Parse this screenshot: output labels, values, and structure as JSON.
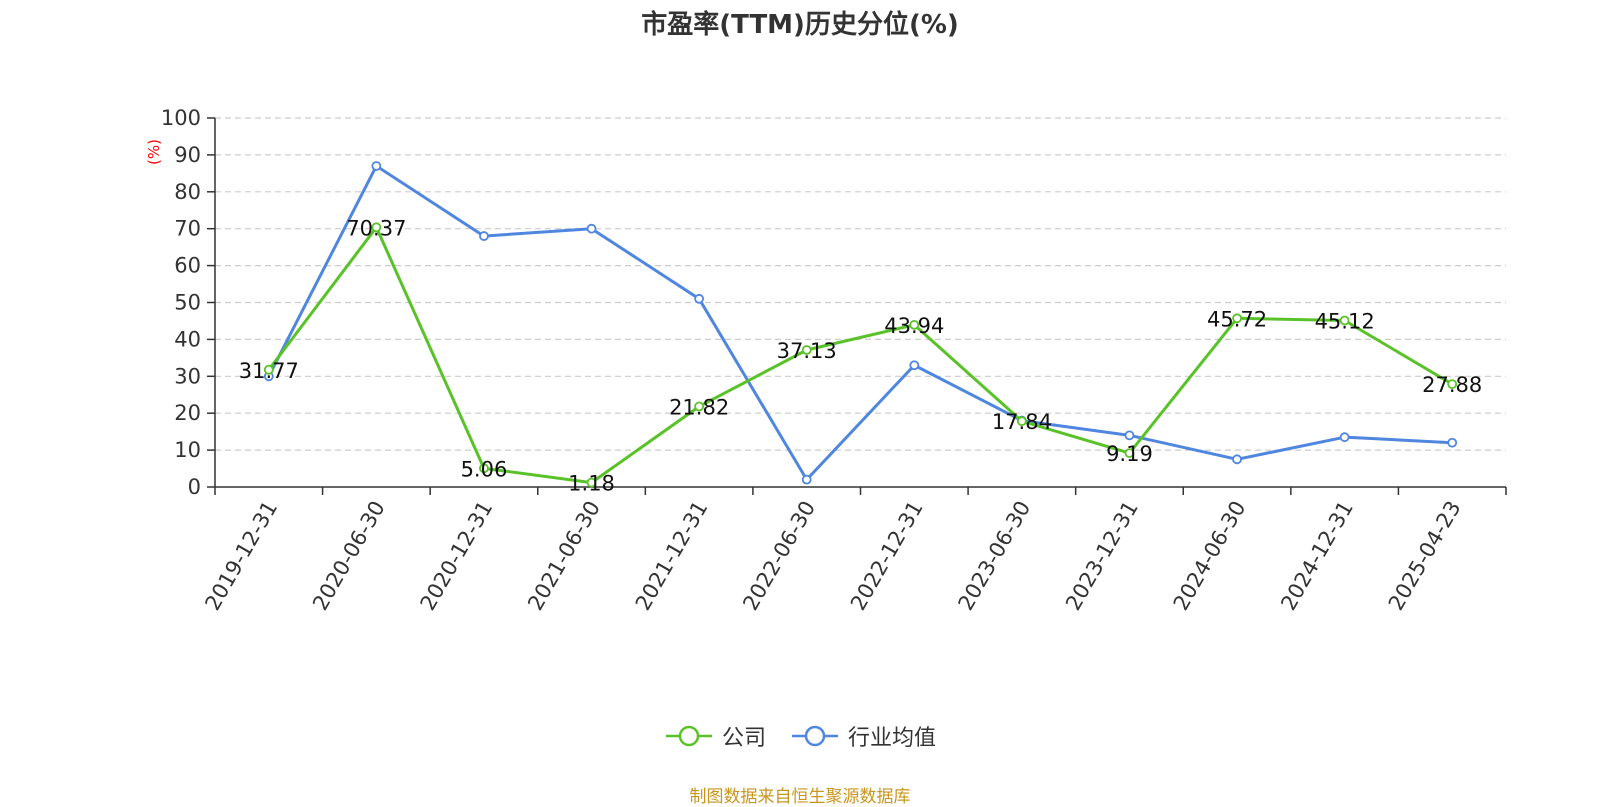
{
  "chart_data": {
    "type": "line",
    "title": "市盈率(TTM)历史分位(%)",
    "ylabel": "(%)",
    "xlabel": "",
    "ylim": [
      0,
      100
    ],
    "yticks": [
      0,
      10,
      20,
      30,
      40,
      50,
      60,
      70,
      80,
      90,
      100
    ],
    "grid": true,
    "legend_position": "bottom",
    "categories": [
      "2019-12-31",
      "2020-06-30",
      "2020-12-31",
      "2021-06-30",
      "2021-12-31",
      "2022-06-30",
      "2022-12-31",
      "2023-06-30",
      "2023-12-31",
      "2024-06-30",
      "2024-12-31",
      "2025-04-23"
    ],
    "series": [
      {
        "name": "公司",
        "color": "#5ac229",
        "values": [
          31.77,
          70.37,
          5.06,
          1.18,
          21.82,
          37.13,
          43.94,
          17.84,
          9.19,
          45.72,
          45.12,
          27.88
        ],
        "labels": [
          "31.77",
          "70.37",
          "5.06",
          "1.18",
          "21.82",
          "37.13",
          "43.94",
          "17.84",
          "9.19",
          "45.72",
          "45.12",
          "27.88"
        ]
      },
      {
        "name": "行业均值",
        "color": "#4f86e0",
        "values": [
          30.0,
          87.0,
          68.0,
          70.0,
          51.0,
          2.0,
          33.0,
          18.0,
          14.0,
          7.5,
          13.5,
          12.0
        ]
      }
    ],
    "source_note": "制图数据来自恒生聚源数据库"
  }
}
